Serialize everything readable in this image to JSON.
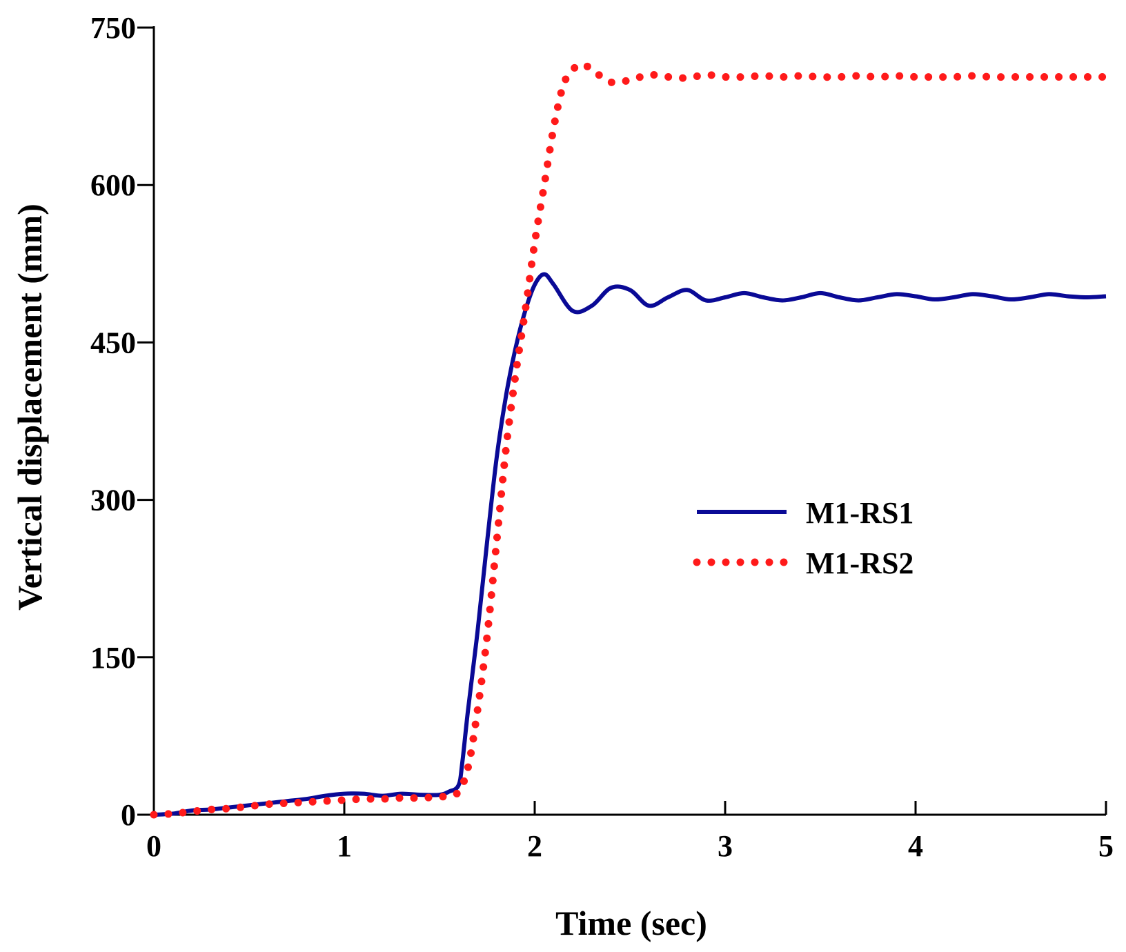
{
  "chart_data": {
    "type": "line",
    "title": "",
    "xlabel": "Time (sec)",
    "ylabel": "Vertical displacement (mm)",
    "xlim": [
      0,
      5
    ],
    "ylim": [
      0,
      750
    ],
    "xticks": [
      0,
      1,
      2,
      3,
      4,
      5
    ],
    "xtick_labels": [
      "0",
      "1",
      "2",
      "3",
      "4",
      "5"
    ],
    "yticks": [
      0,
      150,
      300,
      450,
      600,
      750
    ],
    "ytick_labels": [
      "0",
      "150",
      "300",
      "450",
      "600",
      "750"
    ],
    "grid": false,
    "legend_position": "right-center",
    "series": [
      {
        "name": "M1-RS1",
        "color": "#0a0a96",
        "style": "solid",
        "x": [
          0,
          0.1,
          0.2,
          0.3,
          0.4,
          0.5,
          0.6,
          0.7,
          0.8,
          0.9,
          1.0,
          1.1,
          1.2,
          1.3,
          1.4,
          1.5,
          1.55,
          1.6,
          1.62,
          1.65,
          1.7,
          1.75,
          1.8,
          1.85,
          1.9,
          1.95,
          2.0,
          2.05,
          2.1,
          2.2,
          2.3,
          2.4,
          2.5,
          2.6,
          2.7,
          2.8,
          2.9,
          3.0,
          3.1,
          3.2,
          3.3,
          3.4,
          3.5,
          3.6,
          3.7,
          3.8,
          3.9,
          4.0,
          4.1,
          4.2,
          4.3,
          4.4,
          4.5,
          4.6,
          4.7,
          4.8,
          4.9,
          5.0
        ],
        "y": [
          0,
          1,
          4,
          5,
          7,
          9,
          11,
          13,
          15,
          18,
          20,
          20,
          18,
          20,
          19,
          19,
          22,
          28,
          50,
          100,
          175,
          260,
          340,
          400,
          445,
          480,
          505,
          515,
          505,
          480,
          485,
          502,
          500,
          485,
          493,
          500,
          490,
          493,
          497,
          493,
          490,
          493,
          497,
          493,
          490,
          493,
          496,
          494,
          491,
          493,
          496,
          494,
          491,
          493,
          496,
          494,
          493,
          494
        ],
        "labels": []
      },
      {
        "name": "M1-RS2",
        "color": "#ff1a1a",
        "style": "dotted",
        "x": [
          0,
          0.1,
          0.2,
          0.3,
          0.4,
          0.5,
          0.6,
          0.7,
          0.8,
          0.9,
          1.0,
          1.1,
          1.2,
          1.3,
          1.4,
          1.5,
          1.55,
          1.6,
          1.65,
          1.7,
          1.75,
          1.8,
          1.85,
          1.9,
          1.95,
          2.0,
          2.05,
          2.1,
          2.15,
          2.2,
          2.25,
          2.3,
          2.4,
          2.5,
          2.6,
          2.7,
          2.8,
          2.9,
          3.0,
          3.1,
          3.2,
          3.3,
          3.4,
          3.5,
          3.6,
          3.7,
          3.8,
          3.9,
          4.0,
          4.1,
          4.2,
          4.3,
          4.4,
          4.5,
          4.6,
          4.7,
          4.8,
          4.9,
          5.0
        ],
        "y": [
          0,
          1,
          3,
          5,
          6,
          8,
          10,
          11,
          12,
          13,
          14,
          15,
          15,
          16,
          16,
          17,
          18,
          22,
          45,
          100,
          170,
          260,
          350,
          420,
          480,
          545,
          600,
          655,
          695,
          710,
          715,
          710,
          698,
          700,
          705,
          703,
          702,
          705,
          703,
          703,
          704,
          703,
          704,
          703,
          703,
          704,
          703,
          704,
          703,
          703,
          703,
          704,
          703,
          703,
          703,
          703,
          703,
          703,
          703
        ],
        "labels": []
      }
    ]
  }
}
